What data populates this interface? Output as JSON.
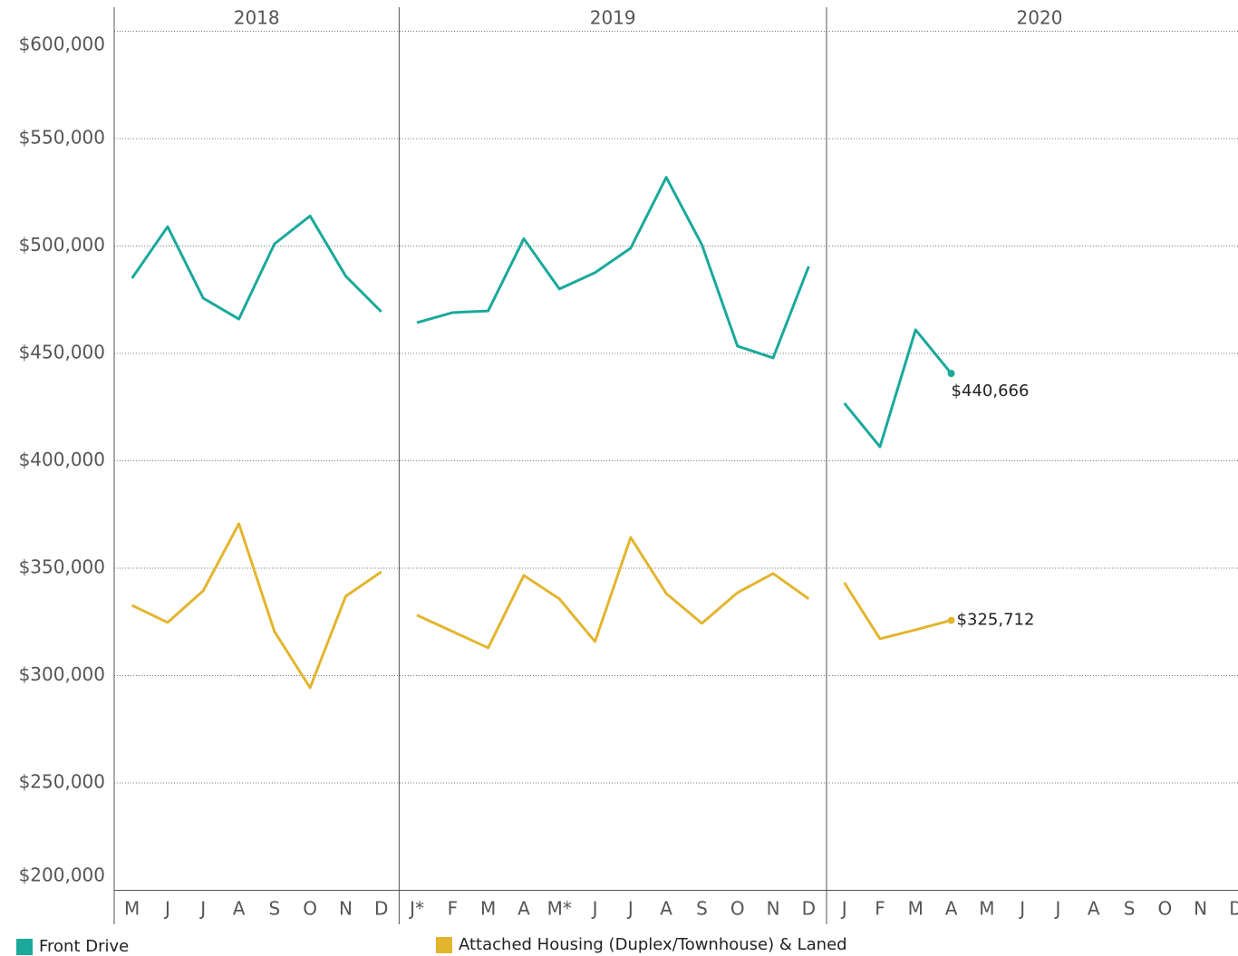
{
  "chart_data": {
    "type": "line",
    "panels": [
      {
        "title": "2018",
        "categories": [
          "M",
          "J",
          "J",
          "A",
          "S",
          "O",
          "N",
          "D"
        ]
      },
      {
        "title": "2019",
        "categories": [
          "J*",
          "F",
          "M",
          "A",
          "M*",
          "J",
          "J",
          "A",
          "S",
          "O",
          "N",
          "D"
        ]
      },
      {
        "title": "2020",
        "categories": [
          "J",
          "F",
          "M",
          "A",
          "M",
          "J",
          "J",
          "A",
          "S",
          "O",
          "N",
          "D"
        ]
      }
    ],
    "series": [
      {
        "name": "Front Drive",
        "color": "#1aa99b",
        "values": [
          [
            485000,
            509000,
            475700,
            466000,
            501000,
            514000,
            486000,
            469400
          ],
          [
            464300,
            469000,
            469800,
            503400,
            480000,
            487600,
            499000,
            532000,
            500600,
            453400,
            447900,
            490500
          ],
          [
            426800,
            406500,
            461000,
            440666,
            null,
            null,
            null,
            null,
            null,
            null,
            null,
            null
          ]
        ],
        "value_labels": [
          [
            null,
            null,
            null,
            null,
            null,
            null,
            null,
            null
          ],
          [
            null,
            null,
            null,
            null,
            null,
            null,
            null,
            null,
            null,
            null,
            null,
            null
          ],
          [
            null,
            null,
            null,
            "$440,666",
            null,
            null,
            null,
            null,
            null,
            null,
            null,
            null
          ]
        ]
      },
      {
        "name": "Attached Housing (Duplex/Townhouse) & Laned",
        "color": "#e3b52f",
        "values": [
          [
            332700,
            324700,
            339500,
            370700,
            320500,
            294300,
            336900,
            348300
          ],
          [
            328100,
            320500,
            312900,
            346600,
            335700,
            315800,
            364300,
            338200,
            324300,
            338600,
            347500,
            335700
          ],
          [
            343200,
            317100,
            321300,
            325712,
            null,
            null,
            null,
            null,
            null,
            null,
            null,
            null
          ]
        ],
        "value_labels": [
          [
            null,
            null,
            null,
            null,
            null,
            null,
            null,
            null
          ],
          [
            null,
            null,
            null,
            null,
            null,
            null,
            null,
            null,
            null,
            null,
            null,
            null
          ],
          [
            null,
            null,
            null,
            "$325,712",
            null,
            null,
            null,
            null,
            null,
            null,
            null,
            null
          ]
        ]
      }
    ],
    "ylim": [
      200000,
      600000
    ],
    "yticks": [
      {
        "value": 200000,
        "label": "$200,000"
      },
      {
        "value": 250000,
        "label": "$250,000"
      },
      {
        "value": 300000,
        "label": "$300,000"
      },
      {
        "value": 350000,
        "label": "$350,000"
      },
      {
        "value": 400000,
        "label": "$400,000"
      },
      {
        "value": 450000,
        "label": "$450,000"
      },
      {
        "value": 500000,
        "label": "$500,000"
      },
      {
        "value": 550000,
        "label": "$550,000"
      },
      {
        "value": 600000,
        "label": "$600,000"
      }
    ],
    "grid": true
  }
}
